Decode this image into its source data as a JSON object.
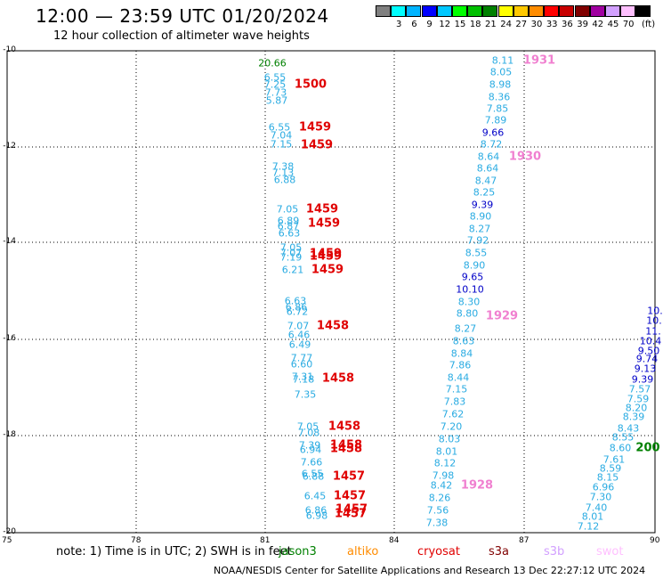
{
  "title": "12:00 — 23:59 UTC 01/20/2024",
  "subtitle": "12 hour collection of altimeter wave heights",
  "legend": {
    "unit": "(ft)",
    "items": [
      {
        "color": "#808080",
        "label": ""
      },
      {
        "color": "#00ffff",
        "label": "3"
      },
      {
        "color": "#00b4ff",
        "label": "6"
      },
      {
        "color": "#0000ff",
        "label": "9"
      },
      {
        "color": "#00c8ff",
        "label": "12"
      },
      {
        "color": "#00ff00",
        "label": "15"
      },
      {
        "color": "#00c000",
        "label": "18"
      },
      {
        "color": "#008000",
        "label": "21"
      },
      {
        "color": "#ffff00",
        "label": "24"
      },
      {
        "color": "#ffc800",
        "label": "27"
      },
      {
        "color": "#ff8c00",
        "label": "30"
      },
      {
        "color": "#ff0000",
        "label": "33"
      },
      {
        "color": "#c80000",
        "label": "36"
      },
      {
        "color": "#800000",
        "label": "39"
      },
      {
        "color": "#a000a0",
        "label": "42"
      },
      {
        "color": "#d2a0ff",
        "label": "45"
      },
      {
        "color": "#ffc0ff",
        "label": "70"
      },
      {
        "color": "#000000",
        "label": ""
      }
    ]
  },
  "axes": {
    "y_ticks": [
      "-10",
      "-12",
      "-14",
      "-16",
      "-18",
      "-20"
    ],
    "x_ticks": [
      "75",
      "78",
      "81",
      "84",
      "87",
      "90"
    ]
  },
  "colors": {
    "light_blue": "#29abe2",
    "dark_blue": "#0000c8",
    "green": "#008000",
    "red": "#e00000",
    "pink": "#f080d0"
  },
  "track_a": {
    "values": [
      {
        "v": "20.66",
        "c": "green"
      },
      {
        "v": "6.55",
        "c": "light_blue"
      },
      {
        "v": "7.25",
        "c": "light_blue"
      },
      {
        "v": "7.73",
        "c": "light_blue"
      },
      {
        "v": "5.87",
        "c": "light_blue"
      },
      {
        "v": "6.55",
        "c": "light_blue"
      },
      {
        "v": "7.04",
        "c": "light_blue"
      },
      {
        "v": "7.15",
        "c": "light_blue"
      },
      {
        "v": "7.38",
        "c": "light_blue"
      },
      {
        "v": "7.13",
        "c": "light_blue"
      },
      {
        "v": "6.88",
        "c": "light_blue"
      },
      {
        "v": "7.05",
        "c": "light_blue"
      },
      {
        "v": "6.89",
        "c": "light_blue"
      },
      {
        "v": "6.87",
        "c": "light_blue"
      },
      {
        "v": "6.63",
        "c": "light_blue"
      },
      {
        "v": "7.05",
        "c": "light_blue"
      },
      {
        "v": "7.07",
        "c": "light_blue"
      },
      {
        "v": "7.19",
        "c": "light_blue"
      },
      {
        "v": "6.21",
        "c": "light_blue"
      },
      {
        "v": "6.63",
        "c": "light_blue"
      },
      {
        "v": "6.86",
        "c": "light_blue"
      },
      {
        "v": "6.72",
        "c": "light_blue"
      },
      {
        "v": "7.07",
        "c": "light_blue"
      },
      {
        "v": "6.46",
        "c": "light_blue"
      },
      {
        "v": "6.49",
        "c": "light_blue"
      },
      {
        "v": "7.77",
        "c": "light_blue"
      },
      {
        "v": "6.60",
        "c": "light_blue"
      },
      {
        "v": "7.31",
        "c": "light_blue"
      },
      {
        "v": "7.18",
        "c": "light_blue"
      },
      {
        "v": "7.35",
        "c": "light_blue"
      },
      {
        "v": "7.05",
        "c": "light_blue"
      },
      {
        "v": "7.08",
        "c": "light_blue"
      },
      {
        "v": "7.39",
        "c": "light_blue"
      },
      {
        "v": "6.94",
        "c": "light_blue"
      },
      {
        "v": "7.66",
        "c": "light_blue"
      },
      {
        "v": "6.55",
        "c": "light_blue"
      },
      {
        "v": "6.88",
        "c": "light_blue"
      },
      {
        "v": "6.45",
        "c": "light_blue"
      },
      {
        "v": "6.86",
        "c": "light_blue"
      },
      {
        "v": "6.98",
        "c": "light_blue"
      }
    ],
    "times": [
      "1500",
      "1459",
      "1459",
      "1459",
      "1459",
      "1459",
      "1459",
      "1459",
      "1458",
      "1458",
      "1458",
      "1458",
      "1458",
      "1457",
      "1457",
      "1457",
      "1457"
    ]
  },
  "track_b": {
    "values": [
      {
        "v": "8.11",
        "c": "light_blue"
      },
      {
        "v": "8.05",
        "c": "light_blue"
      },
      {
        "v": "8.98",
        "c": "light_blue"
      },
      {
        "v": "8.36",
        "c": "light_blue"
      },
      {
        "v": "7.85",
        "c": "light_blue"
      },
      {
        "v": "7.89",
        "c": "light_blue"
      },
      {
        "v": "9.66",
        "c": "dark_blue"
      },
      {
        "v": "8.72",
        "c": "light_blue"
      },
      {
        "v": "8.64",
        "c": "light_blue"
      },
      {
        "v": "8.64",
        "c": "light_blue"
      },
      {
        "v": "8.47",
        "c": "light_blue"
      },
      {
        "v": "8.25",
        "c": "light_blue"
      },
      {
        "v": "9.39",
        "c": "dark_blue"
      },
      {
        "v": "8.90",
        "c": "light_blue"
      },
      {
        "v": "8.27",
        "c": "light_blue"
      },
      {
        "v": "7.92",
        "c": "light_blue"
      },
      {
        "v": "8.55",
        "c": "light_blue"
      },
      {
        "v": "8.90",
        "c": "light_blue"
      },
      {
        "v": "9.65",
        "c": "dark_blue"
      },
      {
        "v": "10.10",
        "c": "dark_blue"
      },
      {
        "v": "8.30",
        "c": "light_blue"
      },
      {
        "v": "8.80",
        "c": "light_blue"
      },
      {
        "v": "8.27",
        "c": "light_blue"
      },
      {
        "v": "8.63",
        "c": "light_blue"
      },
      {
        "v": "8.84",
        "c": "light_blue"
      },
      {
        "v": "7.86",
        "c": "light_blue"
      },
      {
        "v": "8.44",
        "c": "light_blue"
      },
      {
        "v": "7.15",
        "c": "light_blue"
      },
      {
        "v": "7.83",
        "c": "light_blue"
      },
      {
        "v": "7.62",
        "c": "light_blue"
      },
      {
        "v": "7.20",
        "c": "light_blue"
      },
      {
        "v": "8.03",
        "c": "light_blue"
      },
      {
        "v": "8.01",
        "c": "light_blue"
      },
      {
        "v": "8.12",
        "c": "light_blue"
      },
      {
        "v": "7.98",
        "c": "light_blue"
      },
      {
        "v": "8.42",
        "c": "light_blue"
      },
      {
        "v": "8.26",
        "c": "light_blue"
      },
      {
        "v": "7.56",
        "c": "light_blue"
      },
      {
        "v": "7.38",
        "c": "light_blue"
      }
    ],
    "times": [
      "1931",
      "1930",
      "1929",
      "1928"
    ]
  },
  "track_c": {
    "values": [
      {
        "v": "10.",
        "c": "dark_blue"
      },
      {
        "v": "10.",
        "c": "dark_blue"
      },
      {
        "v": "11.",
        "c": "dark_blue"
      },
      {
        "v": "10.4",
        "c": "dark_blue"
      },
      {
        "v": "9.50",
        "c": "dark_blue"
      },
      {
        "v": "9.74",
        "c": "dark_blue"
      },
      {
        "v": "9.13",
        "c": "dark_blue"
      },
      {
        "v": "9.39",
        "c": "dark_blue"
      },
      {
        "v": "7.57",
        "c": "light_blue"
      },
      {
        "v": "7.59",
        "c": "light_blue"
      },
      {
        "v": "8.20",
        "c": "light_blue"
      },
      {
        "v": "8.39",
        "c": "light_blue"
      },
      {
        "v": "8.43",
        "c": "light_blue"
      },
      {
        "v": "8.55",
        "c": "light_blue"
      },
      {
        "v": "8.60",
        "c": "light_blue"
      },
      {
        "v": "7.61",
        "c": "light_blue"
      },
      {
        "v": "8.59",
        "c": "light_blue"
      },
      {
        "v": "8.15",
        "c": "light_blue"
      },
      {
        "v": "6.96",
        "c": "light_blue"
      },
      {
        "v": "7.30",
        "c": "light_blue"
      },
      {
        "v": "7.40",
        "c": "light_blue"
      },
      {
        "v": "8.01",
        "c": "light_blue"
      },
      {
        "v": "7.12",
        "c": "light_blue"
      }
    ],
    "times": [
      "200"
    ]
  },
  "note": "note: 1) Time is in UTC; 2) SWH is in feet",
  "satellites": [
    {
      "name": "jason3",
      "color": "#008000"
    },
    {
      "name": "altiko",
      "color": "#ff8c00"
    },
    {
      "name": "cryosat",
      "color": "#e00000"
    },
    {
      "name": "s3a",
      "color": "#800000"
    },
    {
      "name": "s3b",
      "color": "#d2a0ff"
    },
    {
      "name": "swot",
      "color": "#ffc0ff"
    }
  ],
  "footer": "NOAA/NESDIS Center for Satellite Applications and Research   13 Dec 22:27:12 UTC 2024"
}
